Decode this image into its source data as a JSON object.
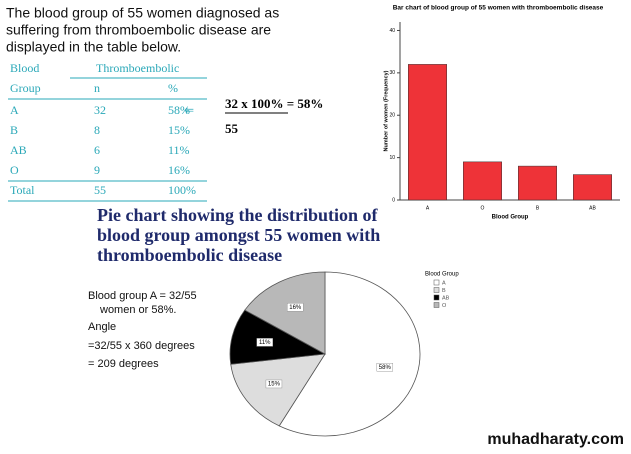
{
  "intro": [
    "The blood group of 55 women diagnosed as",
    "suffering from thromboembolic disease are",
    "displayed in the table below."
  ],
  "table": {
    "header": [
      [
        "Blood",
        "Thromboembolic"
      ],
      [
        "Group",
        "n",
        "%"
      ]
    ],
    "rows": [
      [
        "A",
        "32",
        "58%"
      ],
      [
        "B",
        "8",
        "15%"
      ],
      [
        "AB",
        "6",
        "11%"
      ],
      [
        "O",
        "9",
        "16%"
      ],
      [
        "Total",
        "55",
        "100%"
      ]
    ]
  },
  "formula": {
    "numerator": "32 x 100% = 58%",
    "denominator": "55"
  },
  "pie_heading": [
    "Pie chart showing the distribution of",
    "blood group amongst  55 women with",
    "thromboembolic disease"
  ],
  "notes": [
    "Blood group A = 32/55",
    "women or 58%.",
    "Angle",
    "=32/55 x 360 degrees",
    "= 209 degrees"
  ],
  "watermark": "muhadharaty.com",
  "chart_data": [
    {
      "type": "bar",
      "title": "Bar chart of blood group of 55 women with thromboembolic disease",
      "x_label": "Blood Group",
      "y_label": "Number of women (Frequency)",
      "categories": [
        "A",
        "O",
        "B",
        "AB"
      ],
      "values": [
        32,
        9,
        8,
        6
      ],
      "color": "#ee3338",
      "ylim": [
        0,
        42
      ],
      "yticks": [
        0,
        10,
        20,
        30,
        40
      ]
    },
    {
      "type": "pie",
      "legend_title": "Blood Group",
      "categories": [
        "A",
        "B",
        "AB",
        "O"
      ],
      "values": [
        58,
        15,
        11,
        16
      ],
      "value_labels": [
        "58%",
        "15%",
        "11%",
        "16%"
      ],
      "colors": [
        "#ffffff",
        "#dddddd",
        "#000000",
        "#b8b8b8"
      ]
    }
  ]
}
